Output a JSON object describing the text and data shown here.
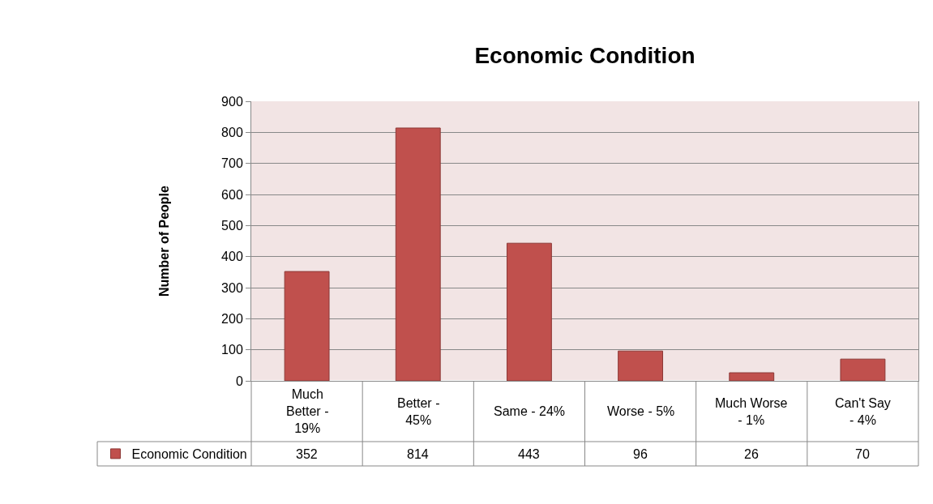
{
  "chart_data": {
    "type": "bar",
    "title": "Economic Condition",
    "ylabel": "Number of People",
    "categories": [
      "Much Better - 19%",
      "Better - 45%",
      "Same - 24%",
      "Worse - 5%",
      "Much Worse - 1%",
      "Can't Say - 4%"
    ],
    "series": [
      {
        "name": "Economic Condition",
        "color": "#c0504d",
        "values": [
          352,
          814,
          443,
          96,
          26,
          70
        ]
      }
    ],
    "ylim": [
      0,
      900
    ],
    "yticks": [
      0,
      100,
      200,
      300,
      400,
      500,
      600,
      700,
      800,
      900
    ],
    "grid": "y",
    "legend": "bottom",
    "data_labels": true
  }
}
